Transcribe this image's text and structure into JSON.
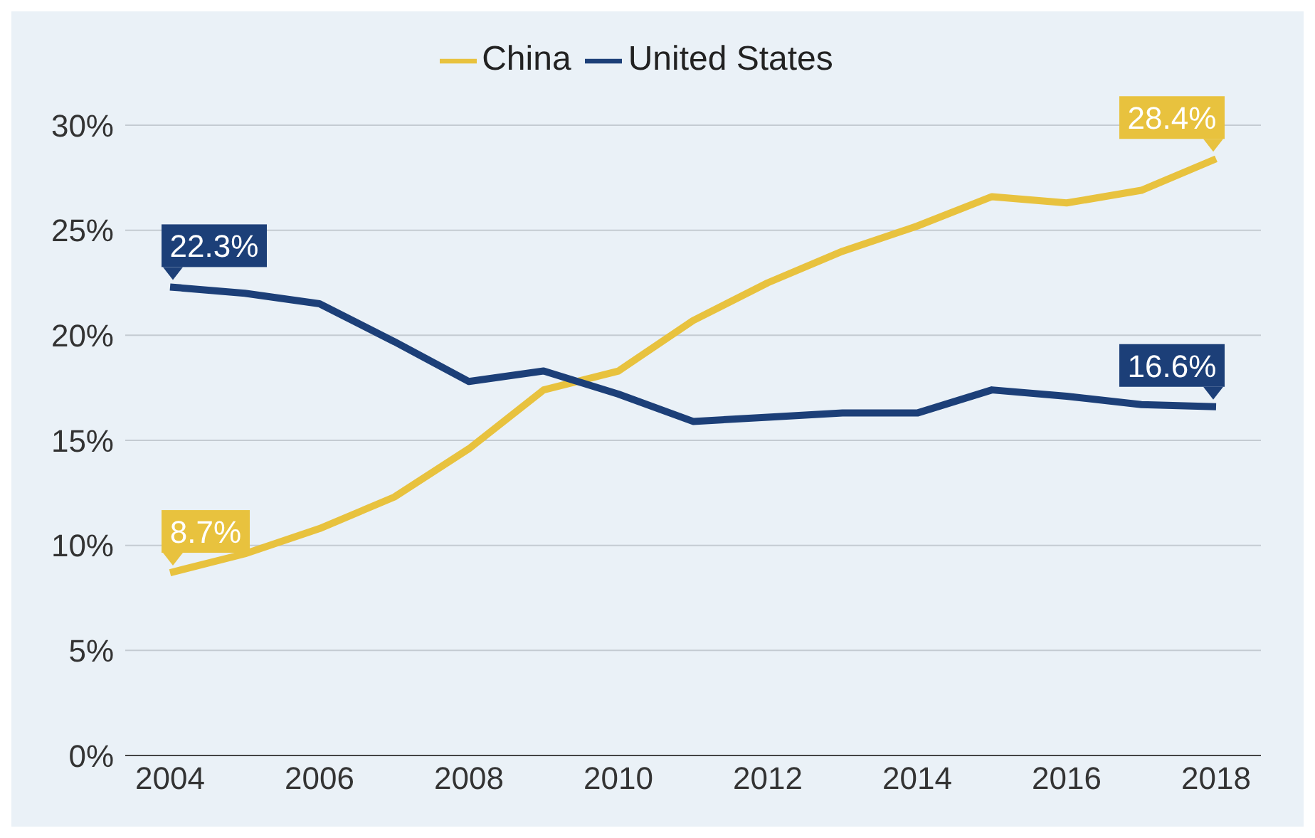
{
  "chart_data": {
    "type": "line",
    "x": [
      2004,
      2005,
      2006,
      2007,
      2008,
      2009,
      2010,
      2011,
      2012,
      2013,
      2014,
      2015,
      2016,
      2017,
      2018
    ],
    "series": [
      {
        "name": "China",
        "color": "#e8c23e",
        "values": [
          8.7,
          9.6,
          10.8,
          12.3,
          14.6,
          17.4,
          18.3,
          20.7,
          22.5,
          24.0,
          25.2,
          26.6,
          26.3,
          26.9,
          28.4
        ],
        "value_labels": [
          "8.7%",
          null,
          null,
          null,
          null,
          null,
          null,
          null,
          null,
          null,
          null,
          null,
          null,
          null,
          "28.4%"
        ]
      },
      {
        "name": "United States",
        "color": "#1c3f78",
        "values": [
          22.3,
          22.0,
          21.5,
          19.7,
          17.8,
          18.3,
          17.2,
          15.9,
          16.1,
          16.3,
          16.3,
          17.4,
          17.1,
          16.7,
          16.6
        ],
        "value_labels": [
          "22.3%",
          null,
          null,
          null,
          null,
          null,
          null,
          null,
          null,
          null,
          null,
          null,
          null,
          null,
          "16.6%"
        ]
      }
    ],
    "xlim": [
      2003.4,
      2018.6
    ],
    "xticks": [
      2004,
      2006,
      2008,
      2010,
      2012,
      2014,
      2016,
      2018
    ],
    "ylim": [
      0,
      30
    ],
    "yticks": [
      {
        "value": 0,
        "label": "0%"
      },
      {
        "value": 5,
        "label": "5%"
      },
      {
        "value": 10,
        "label": "10%"
      },
      {
        "value": 15,
        "label": "15%"
      },
      {
        "value": 20,
        "label": "20%"
      },
      {
        "value": 25,
        "label": "25%"
      },
      {
        "value": 30,
        "label": "30%"
      }
    ],
    "grid": "y",
    "legend": "top",
    "marker": "none",
    "line_style": "solid"
  }
}
